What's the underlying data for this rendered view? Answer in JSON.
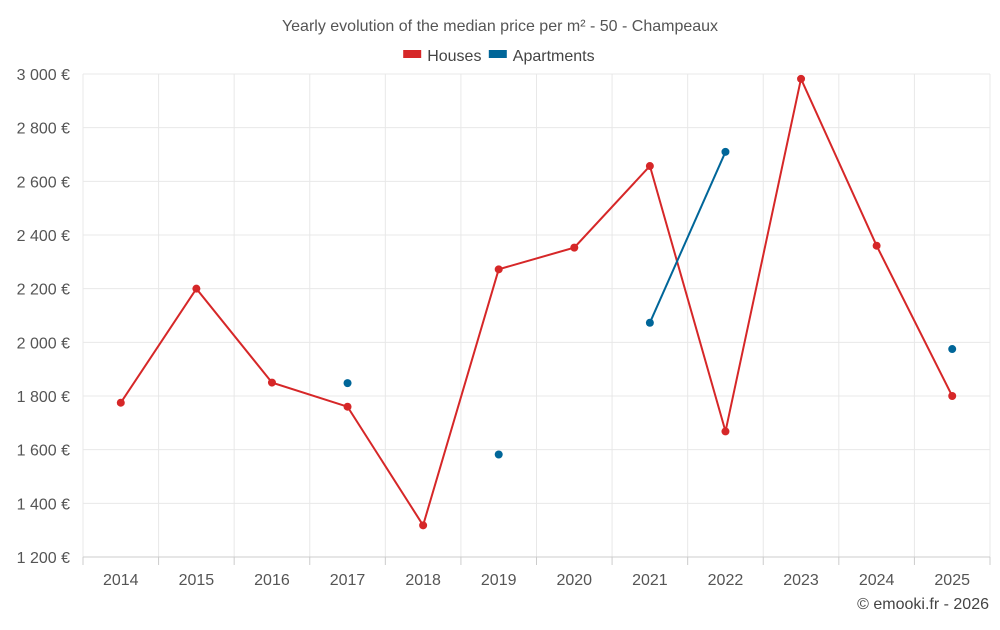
{
  "chart_data": {
    "type": "line",
    "title": "Yearly evolution of the median price per m² - 50 - Champeaux",
    "categories": [
      "2014",
      "2015",
      "2016",
      "2017",
      "2018",
      "2019",
      "2020",
      "2021",
      "2022",
      "2023",
      "2024",
      "2025"
    ],
    "y_ticks": [
      "1 200 €",
      "1 400 €",
      "1 600 €",
      "1 800 €",
      "2 000 €",
      "2 200 €",
      "2 400 €",
      "2 600 €",
      "2 800 €",
      "3 000 €"
    ],
    "y_tick_values": [
      1200,
      1400,
      1600,
      1800,
      2000,
      2200,
      2400,
      2600,
      2800,
      3000
    ],
    "ylim": [
      1200,
      3000
    ],
    "grid": true,
    "legend_position": "top-center",
    "series": [
      {
        "name": "Houses",
        "color": "#d62728",
        "values": [
          1775,
          2200,
          1850,
          1760,
          1318,
          2272,
          2353,
          2657,
          1668,
          2982,
          2360,
          1800
        ]
      },
      {
        "name": "Apartments",
        "color": "#006699",
        "values": [
          null,
          null,
          null,
          1848,
          null,
          1582,
          null,
          2073,
          2710,
          null,
          null,
          1975
        ]
      }
    ]
  },
  "credit": "© emooki.fr - 2026"
}
